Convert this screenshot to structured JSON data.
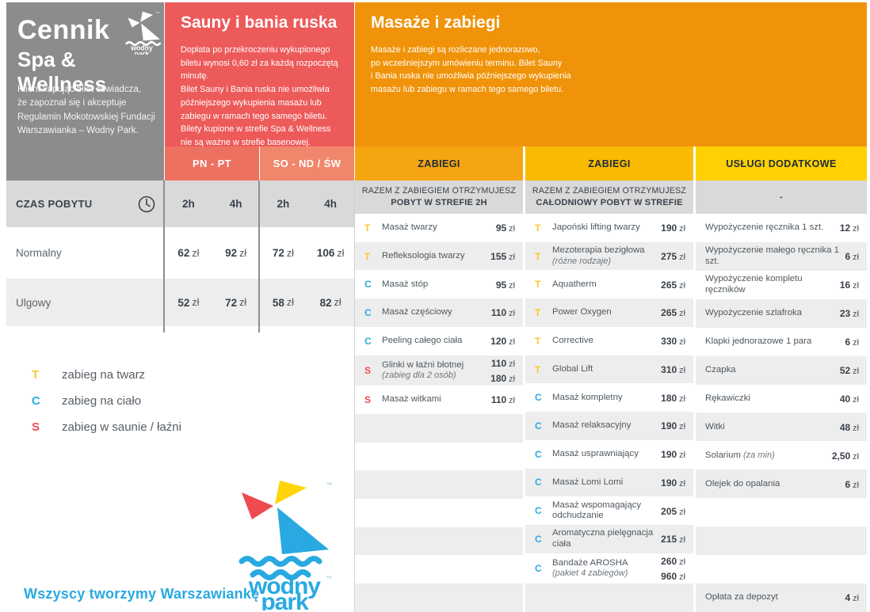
{
  "header": {
    "title_line1": "Cennik",
    "title_line2": "Spa & Wellness",
    "disclaimer": "Klient kupując bilet oświadcza,\nże zapoznał się i akceptuje\nRegulamin Mokotowskiej Fundacji\nWarszawianka – Wodny Park."
  },
  "sauny": {
    "title": "Sauny i bania ruska",
    "description": "Dopłata po przekroczeniu wykupionego\nbiletu wynosi 0,60 zł za każdą rozpoczętą\nminutę.\nBilet Sauny i Bania ruska nie umożliwia\npóźniejszego wykupienia masażu lub\nzabiegu w ramach tego samego biletu.\nBilety kupione w strefie Spa & Wellness\nnie są ważne w strefie basenowej.",
    "weekday_label": "PN - PT",
    "weekend_label": "SO - ND / ŚW"
  },
  "masaze": {
    "title": "Masaże i zabiegi",
    "description": "Masaże i zabiegi są rozliczane jednorazowo,\npo wcześniejszym umówieniu terminu. Bilet Sauny\ni Bania ruska nie umożliwia późniejszego wykupienia\nmasażu lub zabiegu w ramach tego samego biletu."
  },
  "stay_table": {
    "header": "CZAS POBYTU",
    "subheaders": [
      "2h",
      "4h",
      "2h",
      "4h"
    ],
    "currency": "zł",
    "rows": [
      {
        "label": "Normalny",
        "prices": [
          "62",
          "92",
          "72",
          "106"
        ]
      },
      {
        "label": "Ulgowy",
        "prices": [
          "52",
          "72",
          "58",
          "82"
        ]
      }
    ]
  },
  "legend": [
    {
      "letter": "T",
      "label": "zabieg na twarz"
    },
    {
      "letter": "C",
      "label": "zabieg na ciało"
    },
    {
      "letter": "S",
      "label": "zabieg w saunie / łaźni"
    }
  ],
  "columns": [
    {
      "band_label": "ZABIEGI",
      "header_line1": "RAZEM Z ZABIEGIEM OTRZYMUJESZ",
      "header_line2": "POBYT W STREFIE 2H",
      "total_rows": 14,
      "items": [
        {
          "letter": "T",
          "name": "Masaż twarzy",
          "prices": [
            "95"
          ]
        },
        {
          "letter": "T",
          "name": "Refleksologia twarzy",
          "prices": [
            "155"
          ]
        },
        {
          "letter": "C",
          "name": "Masaż stóp",
          "prices": [
            "95"
          ]
        },
        {
          "letter": "C",
          "name": "Masaż częściowy",
          "prices": [
            "110"
          ]
        },
        {
          "letter": "C",
          "name": "Peeling całego ciała",
          "prices": [
            "120"
          ]
        },
        {
          "letter": "S",
          "name": "Glinki w łaźni błotnej",
          "note": "(zabieg dla 2 osób)",
          "prices": [
            "110",
            "180"
          ]
        },
        {
          "letter": "S",
          "name": "Masaż witkami",
          "prices": [
            "110"
          ]
        }
      ]
    },
    {
      "band_label": "ZABIEGI",
      "header_line1": "RAZEM Z ZABIEGIEM OTRZYMUJESZ",
      "header_line2": "CAŁODNIOWY POBYT W STREFIE",
      "total_rows": 14,
      "items": [
        {
          "letter": "T",
          "name": "Japoński lifting twarzy",
          "prices": [
            "190"
          ]
        },
        {
          "letter": "T",
          "name": "Mezoterapia bezigłowa",
          "note": "(różne rodzaje)",
          "prices": [
            "275"
          ]
        },
        {
          "letter": "T",
          "name": "Aquatherm",
          "prices": [
            "265"
          ]
        },
        {
          "letter": "T",
          "name": "Power Oxygen",
          "prices": [
            "265"
          ]
        },
        {
          "letter": "T",
          "name": "Corrective",
          "prices": [
            "330"
          ]
        },
        {
          "letter": "T",
          "name": "Global Lift",
          "prices": [
            "310"
          ]
        },
        {
          "letter": "C",
          "name": "Masaż kompletny",
          "prices": [
            "180"
          ]
        },
        {
          "letter": "C",
          "name": "Masaż relaksacyjny",
          "prices": [
            "190"
          ]
        },
        {
          "letter": "C",
          "name": "Masaż usprawniający",
          "prices": [
            "190"
          ]
        },
        {
          "letter": "C",
          "name": "Masaż Lomi Lomi",
          "prices": [
            "190"
          ]
        },
        {
          "letter": "C",
          "name": "Masaż wspomagający odchudzanie",
          "prices": [
            "205"
          ]
        },
        {
          "letter": "C",
          "name": "Aromatyczna pielęgnacja ciała",
          "prices": [
            "215"
          ]
        },
        {
          "letter": "C",
          "name": "Bandaże AROSHA",
          "note": "(pakiet 4 zabiegów)",
          "prices": [
            "260",
            "960"
          ]
        }
      ]
    },
    {
      "band_label": "USŁUGI DODATKOWE",
      "header_line1": "-",
      "header_line2": "",
      "total_rows": 14,
      "items": [
        {
          "name": "Wypożyczenie ręcznika 1 szt.",
          "prices": [
            "12"
          ]
        },
        {
          "name": "Wypożyczenie małego ręcznika 1 szt.",
          "prices": [
            "6"
          ]
        },
        {
          "name": "Wypożyczenie kompletu ręczników",
          "prices": [
            "16"
          ]
        },
        {
          "name": "Wypożyczenie szlafroka",
          "prices": [
            "23"
          ]
        },
        {
          "name": "Klapki jednorazowe 1 para",
          "prices": [
            "6"
          ]
        },
        {
          "name": "Czapka",
          "prices": [
            "52"
          ]
        },
        {
          "name": "Rękawiczki",
          "prices": [
            "40"
          ]
        },
        {
          "name": "Witki",
          "prices": [
            "48"
          ]
        },
        {
          "name": "Solarium",
          "note_inline": "(za min)",
          "prices": [
            "2,50"
          ]
        },
        {
          "name": "Olejek do opalania",
          "prices": [
            "6"
          ]
        },
        null,
        null,
        null,
        {
          "name": "Opłata za depozyt",
          "prices": [
            "4"
          ]
        }
      ]
    }
  ],
  "footer": {
    "slogan": "Wszyscy tworzymy Warszawiankę",
    "logo_line1": "wodny",
    "logo_line2": "park"
  },
  "colors": {
    "gray_panel": "#8c8c8c",
    "red_panel": "#ed5a5a",
    "orange_panel": "#f0930a",
    "band_weekday": "#ed7160",
    "band_weekend": "#f0876c",
    "band_zabiegi_1": "#f5a50f",
    "band_zabiegi_2": "#f8ba03",
    "band_uslugi": "#ffd103",
    "brand_blue": "#29a9e1",
    "letter_colors": {
      "T": "#fdc52c",
      "C": "#29abe2",
      "S": "#ef4a50"
    }
  }
}
